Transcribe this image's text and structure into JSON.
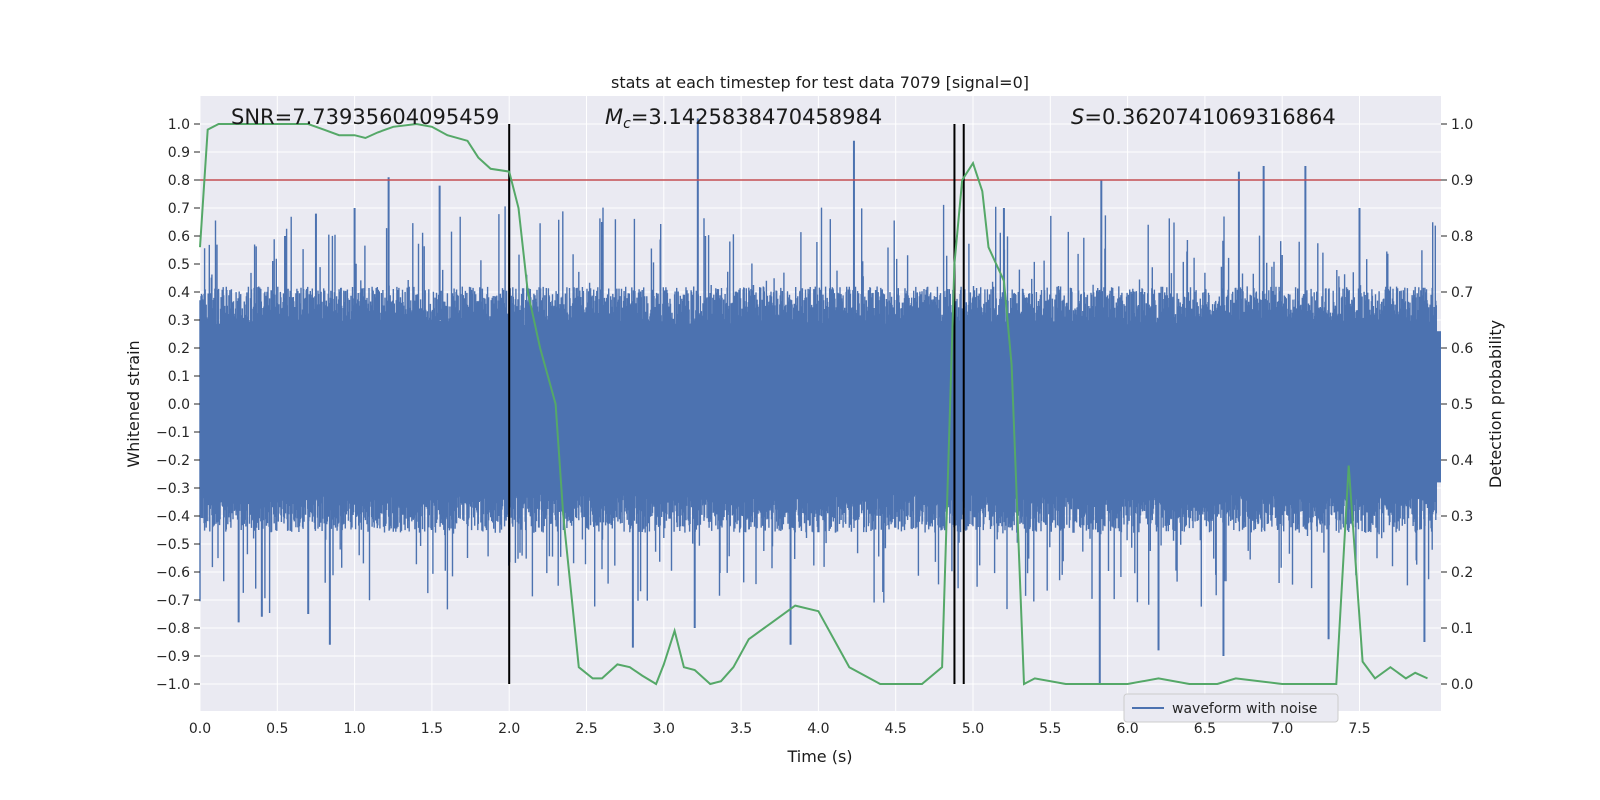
{
  "chart_data": {
    "type": "line",
    "title": "stats at each timestep for test data 7079 [signal=0]",
    "xlabel": "Time (s)",
    "ylabel": "Whitened strain",
    "y2label": "Detection probability",
    "xlim": [
      0.0,
      8.0
    ],
    "ylim": [
      -1.1,
      1.1
    ],
    "y2lim": [
      -0.05,
      1.05
    ],
    "xticks": [
      "0.0",
      "0.5",
      "1.0",
      "1.5",
      "2.0",
      "2.5",
      "3.0",
      "3.5",
      "4.0",
      "4.5",
      "5.0",
      "5.5",
      "6.0",
      "6.5",
      "7.0",
      "7.5"
    ],
    "yticks": [
      "1.0",
      "0.9",
      "0.8",
      "0.7",
      "0.6",
      "0.5",
      "0.4",
      "0.3",
      "0.2",
      "0.1",
      "0.0",
      "−0.1",
      "−0.2",
      "−0.3",
      "−0.4",
      "−0.5",
      "−0.6",
      "−0.7",
      "−0.8",
      "−0.9",
      "−1.0"
    ],
    "y2ticks": [
      "1.0",
      "0.9",
      "0.8",
      "0.7",
      "0.6",
      "0.5",
      "0.4",
      "0.3",
      "0.2",
      "0.1",
      "0.0"
    ],
    "annotations": {
      "snr": "SNR=7.73935604095459",
      "mc_symbol": "M",
      "mc_sub": "c",
      "mc_value": "=3.1425838470458984",
      "s_symbol": "S",
      "s_value": "=0.3620741069316864"
    },
    "threshold": {
      "y": 0.8,
      "color": "#c44e52"
    },
    "vlines": [
      2.0,
      4.88,
      4.94
    ],
    "waveform": {
      "name": "waveform with noise",
      "color": "#4c72b0",
      "envelope": {
        "typical_upper": 0.38,
        "typical_lower": -0.42
      },
      "spikes_up": [
        {
          "x": 0.55,
          "y": 0.6
        },
        {
          "x": 0.75,
          "y": 0.68
        },
        {
          "x": 1.0,
          "y": 0.7
        },
        {
          "x": 1.22,
          "y": 0.81
        },
        {
          "x": 1.55,
          "y": 0.78
        },
        {
          "x": 2.0,
          "y": 0.8
        },
        {
          "x": 2.6,
          "y": 0.65
        },
        {
          "x": 3.22,
          "y": 1.02
        },
        {
          "x": 4.23,
          "y": 0.94
        },
        {
          "x": 5.2,
          "y": 0.7
        },
        {
          "x": 5.83,
          "y": 0.8
        },
        {
          "x": 6.72,
          "y": 0.83
        },
        {
          "x": 6.88,
          "y": 0.85
        },
        {
          "x": 7.15,
          "y": 0.85
        },
        {
          "x": 7.5,
          "y": 0.7
        }
      ],
      "spikes_down": [
        {
          "x": 0.25,
          "y": -0.78
        },
        {
          "x": 0.4,
          "y": -0.76
        },
        {
          "x": 0.7,
          "y": -0.75
        },
        {
          "x": 0.84,
          "y": -0.86
        },
        {
          "x": 2.8,
          "y": -0.87
        },
        {
          "x": 3.2,
          "y": -0.8
        },
        {
          "x": 3.82,
          "y": -0.86
        },
        {
          "x": 5.82,
          "y": -1.0
        },
        {
          "x": 6.2,
          "y": -0.88
        },
        {
          "x": 6.62,
          "y": -0.9
        },
        {
          "x": 7.3,
          "y": -0.84
        },
        {
          "x": 7.92,
          "y": -0.85
        }
      ]
    },
    "detection_probability": {
      "color": "#55a868",
      "x": [
        0.0,
        0.05,
        0.12,
        0.3,
        0.5,
        0.7,
        0.8,
        0.9,
        1.0,
        1.07,
        1.15,
        1.25,
        1.4,
        1.5,
        1.6,
        1.73,
        1.8,
        1.88,
        2.0,
        2.06,
        2.12,
        2.2,
        2.3,
        2.35,
        2.45,
        2.54,
        2.6,
        2.7,
        2.78,
        2.86,
        2.95,
        3.0,
        3.07,
        3.13,
        3.2,
        3.3,
        3.37,
        3.45,
        3.55,
        3.7,
        3.85,
        4.0,
        4.2,
        4.4,
        4.55,
        4.6,
        4.67,
        4.8,
        4.88,
        4.93,
        5.0,
        5.06,
        5.1,
        5.15,
        5.2,
        5.25,
        5.33,
        5.4,
        5.6,
        5.8,
        6.0,
        6.2,
        6.4,
        6.58,
        6.7,
        7.0,
        7.3,
        7.35,
        7.43,
        7.52,
        7.6,
        7.7,
        7.8,
        7.86,
        7.94
      ],
      "y": [
        0.78,
        0.99,
        1.0,
        1.0,
        1.0,
        1.0,
        0.99,
        0.98,
        0.98,
        0.975,
        0.985,
        0.995,
        1.0,
        0.995,
        0.98,
        0.97,
        0.94,
        0.92,
        0.915,
        0.85,
        0.7,
        0.6,
        0.5,
        0.3,
        0.03,
        0.01,
        0.01,
        0.035,
        0.03,
        0.015,
        0.0,
        0.035,
        0.095,
        0.03,
        0.025,
        0.0,
        0.005,
        0.03,
        0.08,
        0.11,
        0.14,
        0.13,
        0.03,
        0.0,
        0.0,
        0.0,
        0.0,
        0.03,
        0.75,
        0.9,
        0.93,
        0.88,
        0.78,
        0.75,
        0.72,
        0.57,
        0.0,
        0.01,
        0.0,
        0.0,
        0.0,
        0.01,
        0.0,
        0.0,
        0.01,
        0.0,
        0.0,
        0.0,
        0.39,
        0.04,
        0.01,
        0.03,
        0.01,
        0.02,
        0.01
      ]
    }
  }
}
